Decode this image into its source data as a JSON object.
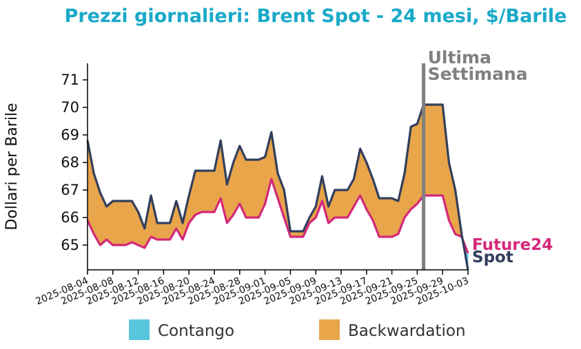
{
  "chart_data": {
    "type": "area",
    "title": "Prezzi giornalieri: Brent Spot - 24 mesi, $/Barile",
    "ylabel": "Dollari per Barile",
    "ylim": [
      64.1,
      71.6
    ],
    "yticks": [
      65,
      66,
      67,
      68,
      69,
      70,
      71
    ],
    "xlim": [
      "2025-08-04",
      "2025-10-03"
    ],
    "xticks": [
      "2025-08-04",
      "2025-08-08",
      "2025-08-12",
      "2025-08-16",
      "2025-08-20",
      "2025-08-24",
      "2025-08-28",
      "2025-09-01",
      "2025-09-05",
      "2025-09-09",
      "2025-09-13",
      "2025-09-17",
      "2025-09-21",
      "2025-09-25",
      "2025-09-29",
      "2025-10-03"
    ],
    "grid": false,
    "legend_position": "bottom",
    "legend": [
      {
        "label": "Contango",
        "color": "#58c6dd"
      },
      {
        "label": "Backwardation",
        "color": "#e8a54a"
      }
    ],
    "annotation": {
      "lines": [
        "Ultima",
        "Settimana"
      ],
      "x": "2025-09-26",
      "color": "#808080"
    },
    "colors": {
      "title": "#1aa9c9",
      "spot": "#323e5c",
      "future": "#d3287a",
      "contango": "#58c6dd",
      "backwardation": "#e8a54a"
    },
    "series": [
      {
        "name": "Spot",
        "x": [
          "2025-08-04",
          "2025-08-05",
          "2025-08-06",
          "2025-08-07",
          "2025-08-08",
          "2025-08-09",
          "2025-08-10",
          "2025-08-11",
          "2025-08-12",
          "2025-08-13",
          "2025-08-14",
          "2025-08-15",
          "2025-08-16",
          "2025-08-17",
          "2025-08-18",
          "2025-08-19",
          "2025-08-20",
          "2025-08-21",
          "2025-08-22",
          "2025-08-23",
          "2025-08-24",
          "2025-08-25",
          "2025-08-26",
          "2025-08-27",
          "2025-08-28",
          "2025-08-29",
          "2025-08-30",
          "2025-08-31",
          "2025-09-01",
          "2025-09-02",
          "2025-09-03",
          "2025-09-04",
          "2025-09-05",
          "2025-09-06",
          "2025-09-07",
          "2025-09-08",
          "2025-09-09",
          "2025-09-10",
          "2025-09-11",
          "2025-09-12",
          "2025-09-13",
          "2025-09-14",
          "2025-09-15",
          "2025-09-16",
          "2025-09-17",
          "2025-09-18",
          "2025-09-19",
          "2025-09-20",
          "2025-09-21",
          "2025-09-22",
          "2025-09-23",
          "2025-09-24",
          "2025-09-25",
          "2025-09-26",
          "2025-09-27",
          "2025-09-28",
          "2025-09-29",
          "2025-09-30",
          "2025-10-01",
          "2025-10-02",
          "2025-10-03"
        ],
        "values": [
          68.8,
          67.6,
          66.9,
          66.4,
          66.6,
          66.6,
          66.6,
          66.6,
          66.2,
          65.6,
          66.8,
          65.8,
          65.8,
          65.8,
          66.6,
          65.8,
          66.8,
          67.7,
          67.7,
          67.7,
          67.7,
          68.8,
          67.2,
          68.0,
          68.6,
          68.1,
          68.1,
          68.1,
          68.2,
          69.1,
          67.6,
          67.0,
          65.5,
          65.5,
          65.5,
          66.0,
          66.4,
          67.5,
          66.4,
          67.0,
          67.0,
          67.0,
          67.4,
          68.5,
          68.0,
          67.4,
          66.7,
          66.7,
          66.7,
          66.6,
          67.6,
          69.3,
          69.4,
          70.1,
          70.1,
          70.1,
          70.1,
          68.0,
          67.0,
          65.4,
          64.1
        ]
      },
      {
        "name": "Future24",
        "x": [
          "2025-08-04",
          "2025-08-05",
          "2025-08-06",
          "2025-08-07",
          "2025-08-08",
          "2025-08-09",
          "2025-08-10",
          "2025-08-11",
          "2025-08-12",
          "2025-08-13",
          "2025-08-14",
          "2025-08-15",
          "2025-08-16",
          "2025-08-17",
          "2025-08-18",
          "2025-08-19",
          "2025-08-20",
          "2025-08-21",
          "2025-08-22",
          "2025-08-23",
          "2025-08-24",
          "2025-08-25",
          "2025-08-26",
          "2025-08-27",
          "2025-08-28",
          "2025-08-29",
          "2025-08-30",
          "2025-08-31",
          "2025-09-01",
          "2025-09-02",
          "2025-09-03",
          "2025-09-04",
          "2025-09-05",
          "2025-09-06",
          "2025-09-07",
          "2025-09-08",
          "2025-09-09",
          "2025-09-10",
          "2025-09-11",
          "2025-09-12",
          "2025-09-13",
          "2025-09-14",
          "2025-09-15",
          "2025-09-16",
          "2025-09-17",
          "2025-09-18",
          "2025-09-19",
          "2025-09-20",
          "2025-09-21",
          "2025-09-22",
          "2025-09-23",
          "2025-09-24",
          "2025-09-25",
          "2025-09-26",
          "2025-09-27",
          "2025-09-28",
          "2025-09-29",
          "2025-09-30",
          "2025-10-01",
          "2025-10-02",
          "2025-10-03"
        ],
        "values": [
          65.9,
          65.4,
          65.0,
          65.2,
          65.0,
          65.0,
          65.0,
          65.1,
          65.0,
          64.9,
          65.3,
          65.2,
          65.2,
          65.2,
          65.6,
          65.2,
          65.8,
          66.1,
          66.2,
          66.2,
          66.2,
          66.7,
          65.8,
          66.1,
          66.5,
          66.0,
          66.0,
          66.0,
          66.5,
          67.4,
          66.7,
          66.0,
          65.3,
          65.3,
          65.3,
          65.8,
          66.0,
          66.6,
          65.8,
          66.0,
          66.0,
          66.0,
          66.4,
          66.8,
          66.3,
          65.9,
          65.3,
          65.3,
          65.3,
          65.4,
          66.0,
          66.3,
          66.5,
          66.8,
          66.8,
          66.8,
          66.8,
          65.9,
          65.4,
          65.3,
          64.7
        ]
      }
    ]
  }
}
